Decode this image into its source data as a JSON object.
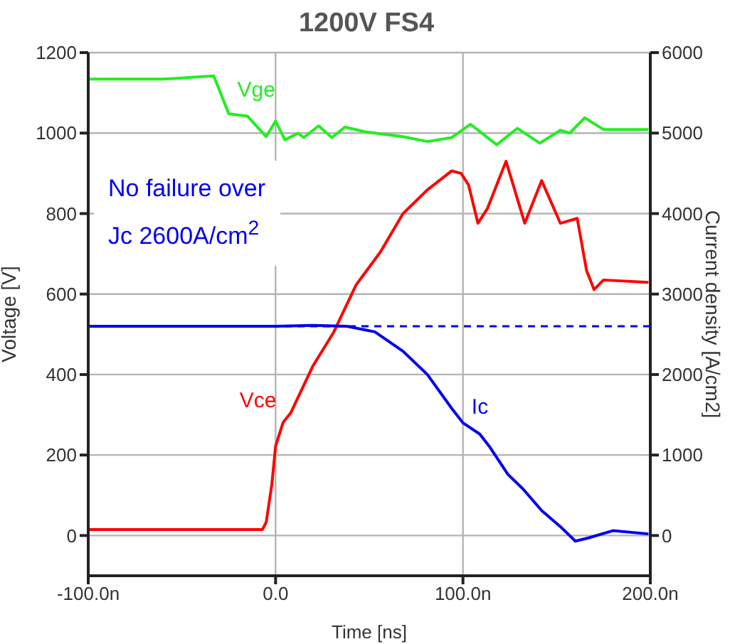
{
  "chart_data": {
    "type": "line",
    "title": "1200V FS4",
    "xlabel": "Time [ns]",
    "ylabel": "Voltage [V]",
    "y2label": "Current density [A/cm2]",
    "xlim": [
      -100,
      200
    ],
    "xticks": [
      {
        "value": -100,
        "label": "-100.0n"
      },
      {
        "value": 0,
        "label": "0.0"
      },
      {
        "value": 100,
        "label": "100.0n"
      },
      {
        "value": 200,
        "label": "200.0n"
      }
    ],
    "ylim": [
      -100,
      1200
    ],
    "yticks": [
      0,
      200,
      400,
      600,
      800,
      1000,
      1200
    ],
    "y2lim": [
      -500,
      6000
    ],
    "y2ticks": [
      0,
      1000,
      2000,
      3000,
      4000,
      5000,
      6000
    ],
    "grid": true,
    "legend": false,
    "marker": "none",
    "line_style": "solid",
    "series": [
      {
        "name": "Vge",
        "color": "#22ee22",
        "x": [
          -100,
          -60,
          -33,
          -25,
          -15,
          -5,
          0,
          5,
          12,
          15,
          23,
          30,
          37,
          48,
          68,
          81,
          94,
          104,
          118,
          129,
          141,
          152,
          157,
          165,
          175,
          199
        ],
        "values": [
          1134,
          1134,
          1142,
          1048,
          1042,
          991,
          1030,
          983,
          1000,
          989,
          1018,
          989,
          1015,
          1003,
          991,
          979,
          989,
          1022,
          971,
          1012,
          975,
          1007,
          1000,
          1038,
          1009,
          1009
        ]
      },
      {
        "name": "Vce",
        "color": "#ff0000",
        "x": [
          -100,
          -50,
          -7,
          -5,
          -2,
          0,
          4,
          8,
          20,
          31,
          43,
          56,
          68,
          81,
          94,
          99,
          103,
          108,
          113,
          123,
          133,
          142,
          152,
          161,
          166,
          170,
          175,
          199
        ],
        "values": [
          15,
          15,
          15,
          33,
          127,
          222,
          281,
          304,
          422,
          505,
          623,
          705,
          800,
          859,
          906,
          900,
          871,
          776,
          812,
          930,
          776,
          882,
          776,
          788,
          658,
          611,
          635,
          629
        ]
      },
      {
        "name": "Ic",
        "color": "#0000ee",
        "axis": "y2",
        "x": [
          -100,
          -50,
          0,
          20,
          38,
          53,
          68,
          81,
          94,
          100,
          109,
          114,
          124,
          132,
          142,
          152,
          160,
          167,
          180,
          199
        ],
        "values": [
          2600,
          2600,
          2600,
          2610,
          2600,
          2530,
          2290,
          2000,
          1580,
          1400,
          1260,
          1110,
          760,
          580,
          310,
          110,
          -70,
          -30,
          60,
          20
        ]
      }
    ],
    "ref_lines": [
      {
        "axis": "y2",
        "value": 2600,
        "color": "#0000ee",
        "line_style": "dashed"
      }
    ],
    "annotations": [
      "No failure over\nJc 2600A/cm$^{2}$"
    ]
  }
}
